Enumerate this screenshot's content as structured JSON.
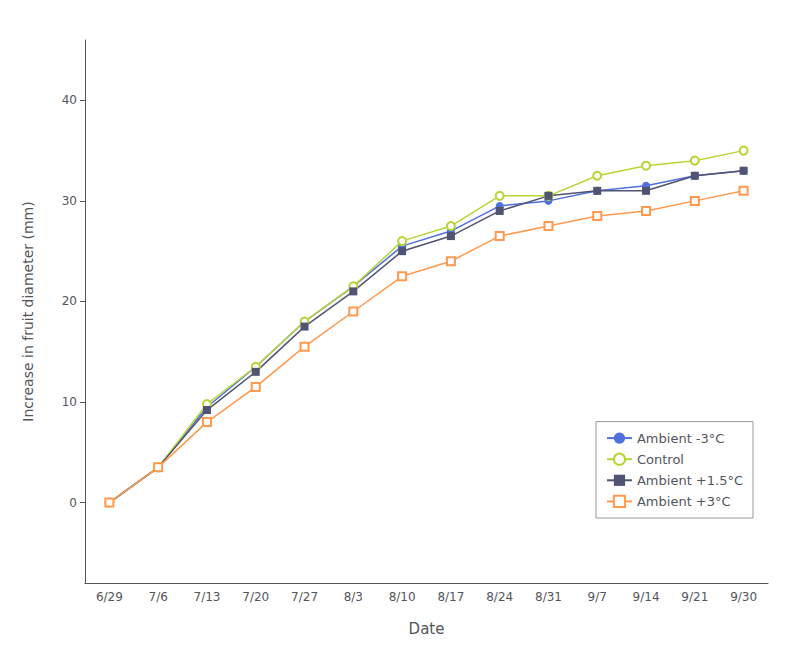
{
  "chart_data": {
    "type": "line",
    "xlabel": "Date",
    "ylabel": "Increase in fruit diameter (mm)",
    "categories": [
      "6/29",
      "7/6",
      "7/13",
      "7/20",
      "7/27",
      "8/3",
      "8/10",
      "8/17",
      "8/24",
      "8/31",
      "9/7",
      "9/14",
      "9/21",
      "9/30"
    ],
    "series": [
      {
        "name": "Ambient -3°C",
        "marker": "circle",
        "line_style": "solid",
        "values": [
          0,
          3.5,
          9.5,
          13.5,
          18.0,
          21.5,
          25.5,
          27.0,
          29.5,
          30.0,
          31.0,
          31.5,
          32.5,
          33.0
        ]
      },
      {
        "name": "Control",
        "marker": "open_circle",
        "line_style": "solid",
        "values": [
          0,
          3.5,
          9.8,
          13.5,
          18.0,
          21.5,
          26.0,
          27.5,
          30.5,
          30.5,
          32.5,
          33.5,
          34.0,
          35.0
        ]
      },
      {
        "name": "Ambient +1.5°C",
        "marker": "square",
        "line_style": "solid",
        "values": [
          0,
          3.5,
          9.2,
          13.0,
          17.5,
          21.0,
          25.0,
          26.5,
          29.0,
          30.5,
          31.0,
          31.0,
          32.5,
          33.0
        ]
      },
      {
        "name": "Ambient +3°C",
        "marker": "open_square",
        "line_style": "solid",
        "values": [
          0,
          3.5,
          8.0,
          11.5,
          15.5,
          19.0,
          22.5,
          24.0,
          26.5,
          27.5,
          28.5,
          29.0,
          30.0,
          31.0
        ]
      }
    ],
    "ylim": [
      -8,
      46
    ],
    "yticks": [
      0,
      10,
      20,
      30,
      40
    ],
    "grid": false,
    "legend": "lower right"
  }
}
